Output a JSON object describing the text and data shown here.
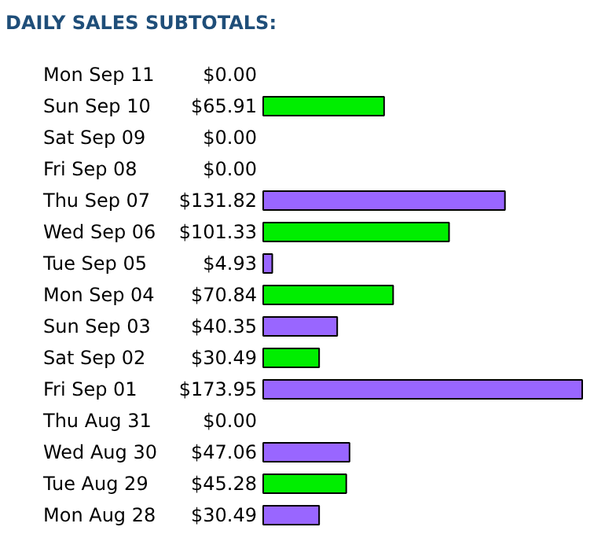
{
  "chart_data": {
    "type": "bar",
    "orientation": "horizontal",
    "title": "DAILY SALES SUBTOTALS:",
    "categories": [
      "Mon Sep 11",
      "Sun Sep 10",
      "Sat Sep 09",
      "Fri Sep 08",
      "Thu Sep 07",
      "Wed Sep 06",
      "Tue Sep 05",
      "Mon Sep 04",
      "Sun Sep 03",
      "Sat Sep 02",
      "Fri Sep 01",
      "Thu Aug 31",
      "Wed Aug 30",
      "Tue Aug 29",
      "Mon Aug 28"
    ],
    "values": [
      0,
      65.91,
      0,
      0,
      131.82,
      101.33,
      4.93,
      70.84,
      40.35,
      30.49,
      173.95,
      0,
      47.06,
      45.28,
      30.49
    ],
    "value_labels": [
      "$0.00",
      "$65.91",
      "$0.00",
      "$0.00",
      "$131.82",
      "$101.33",
      "$4.93",
      "$70.84",
      "$40.35",
      "$30.49",
      "$173.95",
      "$0.00",
      "$47.06",
      "$45.28",
      "$30.49"
    ],
    "colors": [
      "#9966ff",
      "#00ee00",
      "#9966ff",
      "#00ee00",
      "#9966ff",
      "#00ee00",
      "#9966ff",
      "#00ee00",
      "#9966ff",
      "#00ee00",
      "#9966ff",
      "#00ee00",
      "#9966ff",
      "#00ee00",
      "#9966ff"
    ]
  }
}
